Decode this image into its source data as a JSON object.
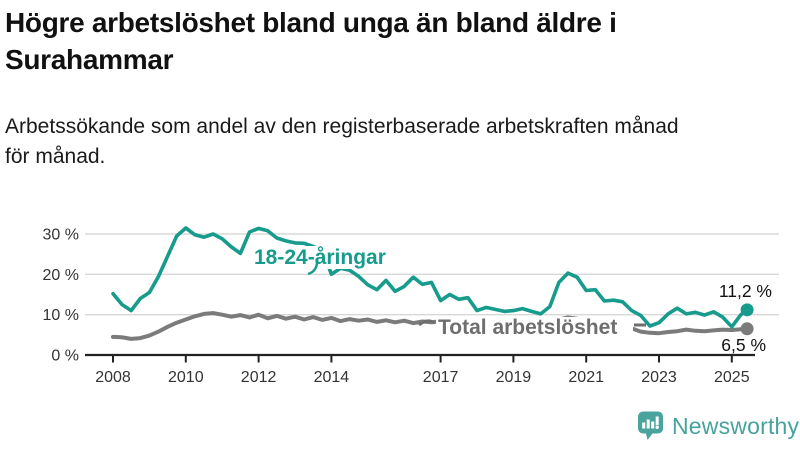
{
  "header": {
    "title": "Högre arbetslöshet bland unga än bland äldre i\nSurahammar",
    "subtitle": "Arbetssökande som andel av den registerbaserade arbetskraften månad\nför månad."
  },
  "footer": {
    "brand": "Newsworthy",
    "logo_icon": "newsworthy-bubble-barchart-icon"
  },
  "colors": {
    "youth": "#169b8d",
    "total": "#7b7b7b",
    "total_label": "#6e6e6e",
    "grid": "#d8d8d8",
    "axis": "#222222",
    "tick_text": "#333333",
    "annotation_text": "#111111",
    "brand": "#47a29b"
  },
  "chart_data": {
    "type": "line",
    "title": "Högre arbetslöshet bland unga än bland äldre i Surahammar",
    "subtitle": "Arbetssökande som andel av den registerbaserade arbetskraften månad för månad.",
    "grid": true,
    "x_axis": {
      "ticks": [
        2008,
        2010,
        2012,
        2014,
        2017,
        2019,
        2021,
        2023,
        2025
      ],
      "tick_labels": [
        "2008",
        "2010",
        "2012",
        "2014",
        "2017",
        "2019",
        "2021",
        "2023",
        "2025"
      ],
      "range": [
        2008,
        2025.5
      ]
    },
    "y_axis": {
      "unit": "%",
      "ticks": [
        0,
        10,
        20,
        30
      ],
      "tick_labels": [
        "0 %",
        "10 %",
        "20 %",
        "30 %"
      ],
      "range": [
        0,
        33
      ]
    },
    "x": [
      2008,
      2008.25,
      2008.5,
      2008.75,
      2009,
      2009.25,
      2009.5,
      2009.75,
      2010,
      2010.25,
      2010.5,
      2010.75,
      2011,
      2011.25,
      2011.5,
      2011.75,
      2012,
      2012.25,
      2012.5,
      2012.75,
      2013,
      2013.25,
      2013.5,
      2013.75,
      2014,
      2014.25,
      2014.5,
      2014.75,
      2015,
      2015.25,
      2015.5,
      2015.75,
      2016,
      2016.25,
      2016.5,
      2016.75,
      2017,
      2017.25,
      2017.5,
      2017.75,
      2018,
      2018.25,
      2018.5,
      2018.75,
      2019,
      2019.25,
      2019.5,
      2019.75,
      2020,
      2020.25,
      2020.5,
      2020.75,
      2021,
      2021.25,
      2021.5,
      2021.75,
      2022,
      2022.25,
      2022.5,
      2022.75,
      2023,
      2023.25,
      2023.5,
      2023.75,
      2024,
      2024.25,
      2024.5,
      2024.75,
      2025,
      2025.25,
      2025.42
    ],
    "series": [
      {
        "name": "18-24-åringar",
        "color": "#169b8d",
        "end_value": 11.2,
        "end_label": "11,2 %",
        "values": [
          15.2,
          12.5,
          11.0,
          14.0,
          15.5,
          19.5,
          24.5,
          29.5,
          31.5,
          29.8,
          29.2,
          30.0,
          28.8,
          26.8,
          25.2,
          30.5,
          31.4,
          30.8,
          29.0,
          28.3,
          27.8,
          27.7,
          26.9,
          26.0,
          20.0,
          21.5,
          21.0,
          19.5,
          17.4,
          16.2,
          18.5,
          15.8,
          17.0,
          19.3,
          17.5,
          18.0,
          13.5,
          15.0,
          13.8,
          14.2,
          11.0,
          11.8,
          11.3,
          10.8,
          11.0,
          11.5,
          10.8,
          10.2,
          12.0,
          18.0,
          20.3,
          19.3,
          16.0,
          16.2,
          13.4,
          13.6,
          13.2,
          11.0,
          9.8,
          7.2,
          8.0,
          10.2,
          11.6,
          10.2,
          10.6,
          9.9,
          10.7,
          9.4,
          7.0,
          10.0,
          11.2
        ]
      },
      {
        "name": "Total arbetslöshet",
        "color": "#7b7b7b",
        "end_value": 6.5,
        "end_label": "6,5 %",
        "values": [
          4.5,
          4.4,
          4.0,
          4.2,
          4.8,
          5.8,
          7.0,
          8.0,
          8.8,
          9.6,
          10.2,
          10.4,
          10.0,
          9.5,
          9.9,
          9.3,
          10.0,
          9.1,
          9.7,
          9.0,
          9.5,
          8.8,
          9.4,
          8.7,
          9.2,
          8.4,
          8.9,
          8.5,
          8.8,
          8.2,
          8.6,
          8.1,
          8.5,
          7.9,
          8.3,
          8.1,
          8.4,
          7.9,
          8.2,
          8.0,
          7.8,
          7.5,
          7.7,
          7.3,
          7.2,
          7.0,
          7.3,
          7.1,
          7.6,
          8.8,
          9.3,
          9.0,
          8.6,
          8.2,
          7.8,
          7.4,
          7.0,
          6.6,
          5.8,
          5.5,
          5.4,
          5.7,
          5.9,
          6.3,
          6.0,
          5.9,
          6.1,
          6.3,
          6.2,
          6.4,
          6.5
        ]
      }
    ]
  }
}
